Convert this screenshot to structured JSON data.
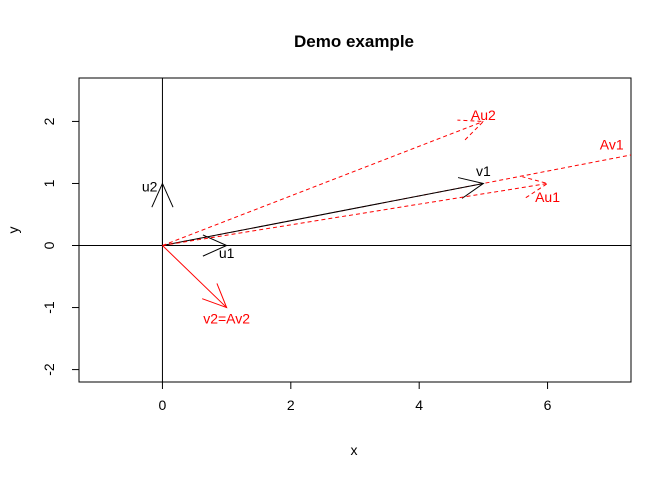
{
  "chart_data": {
    "type": "scatter",
    "title": "Demo example",
    "xlabel": "x",
    "ylabel": "y",
    "xlim": [
      -1.3,
      7.3
    ],
    "ylim": [
      -2.2,
      2.7
    ],
    "x_ticks": [
      0,
      2,
      4,
      6
    ],
    "y_ticks": [
      -2,
      -1,
      0,
      1,
      2
    ],
    "reference_lines": [
      {
        "name": "h0",
        "orientation": "horizontal",
        "value": 0,
        "color": "#000000"
      },
      {
        "name": "v0",
        "orientation": "vertical",
        "value": 0,
        "color": "#000000"
      }
    ],
    "extended_lines": [
      {
        "name": "av1-line",
        "slope": 0.2,
        "color": "#ff0000",
        "style": "dashed",
        "label": "Av1",
        "label_x": 7.0,
        "label_y": 1.55
      }
    ],
    "vectors": [
      {
        "name": "v1",
        "label": "v1",
        "x": 5,
        "y": 1,
        "color": "#000000",
        "style": "solid",
        "label_x": 5.0,
        "label_y": 1.2
      },
      {
        "name": "u1",
        "label": "u1",
        "x": 1,
        "y": 0,
        "color": "#000000",
        "style": "solid",
        "label_x": 1.0,
        "label_y": -0.12
      },
      {
        "name": "u2",
        "label": "u2",
        "x": 0,
        "y": 1,
        "color": "#000000",
        "style": "solid",
        "label_x": -0.2,
        "label_y": 0.95
      },
      {
        "name": "v2",
        "label": "v2=Av2",
        "x": 1,
        "y": -1,
        "color": "#ff0000",
        "style": "solid",
        "label_x": 1.0,
        "label_y": -1.18
      },
      {
        "name": "au1",
        "label": "Au1",
        "x": 6,
        "y": 1,
        "color": "#ff0000",
        "style": "dashed",
        "label_x": 6.0,
        "label_y": 0.78
      },
      {
        "name": "au2",
        "label": "Au2",
        "x": 5,
        "y": 2,
        "color": "#ff0000",
        "style": "dashed",
        "label_x": 5.0,
        "label_y": 2.1
      }
    ]
  }
}
